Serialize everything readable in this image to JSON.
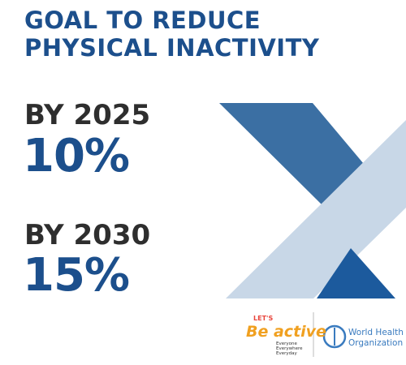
{
  "header": {
    "title_lines": [
      "GOAL TO REDUCE",
      "PHYSICAL INACTIVITY"
    ]
  },
  "targets": [
    {
      "year_label": "BY 2025",
      "value": "10%"
    },
    {
      "year_label": "BY 2030",
      "value": "15%"
    }
  ],
  "footer": {
    "campaign": {
      "top": "LET'S",
      "main": "Be active",
      "lines": [
        "Everyone",
        "Everywhere",
        "Everyday"
      ]
    },
    "organization": [
      "World Health",
      "Organization"
    ]
  }
}
